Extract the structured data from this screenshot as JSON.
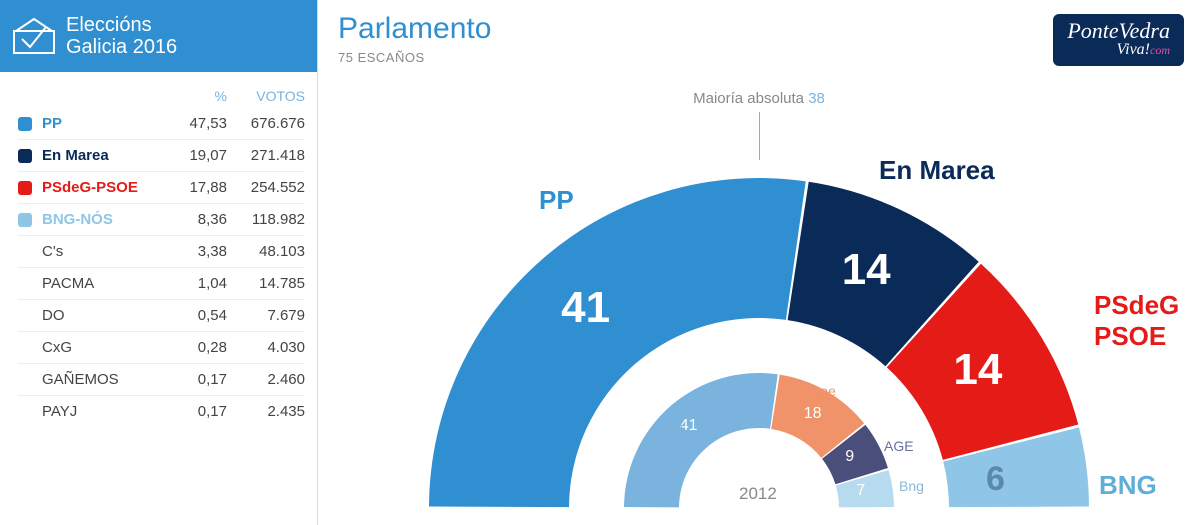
{
  "header": {
    "line1": "Eleccións",
    "line2": "Galicia 2016",
    "bg_color": "#2f8fd0"
  },
  "columns": {
    "pct": "%",
    "votes": "VOTOS"
  },
  "parties": [
    {
      "name": "PP",
      "pct": "47,53",
      "votes": "676.676",
      "color": "#2f8fd0"
    },
    {
      "name": "En Marea",
      "pct": "19,07",
      "votes": "271.418",
      "color": "#0a2a58"
    },
    {
      "name": "PSdeG-PSOE",
      "pct": "17,88",
      "votes": "254.552",
      "color": "#e41b17"
    },
    {
      "name": "BNG-NÓS",
      "pct": "8,36",
      "votes": "118.982",
      "color": "#8fc6e7"
    },
    {
      "name": "C's",
      "pct": "3,38",
      "votes": "48.103",
      "color": null
    },
    {
      "name": "PACMA",
      "pct": "1,04",
      "votes": "14.785",
      "color": null
    },
    {
      "name": "DO",
      "pct": "0,54",
      "votes": "7.679",
      "color": null
    },
    {
      "name": "CxG",
      "pct": "0,28",
      "votes": "4.030",
      "color": null
    },
    {
      "name": "GAÑEMOS",
      "pct": "0,17",
      "votes": "2.460",
      "color": null
    },
    {
      "name": "PAYJ",
      "pct": "0,17",
      "votes": "2.435",
      "color": null
    }
  ],
  "parliament": {
    "title": "Parlamento",
    "subtitle": "75 ESCAÑOS",
    "majority_label": "Maioría absoluta",
    "majority_value": "38",
    "total_seats": 75,
    "outer": [
      {
        "name": "PP",
        "seats": 41,
        "color": "#2f8fd0",
        "label_color": "#2f8fd0"
      },
      {
        "name": "En Marea",
        "seats": 14,
        "color": "#0a2a58",
        "label_color": "#0a2a58"
      },
      {
        "name": "PSdeG PSOE",
        "seats": 14,
        "color": "#e41b17",
        "label_color": "#e41b17"
      },
      {
        "name": "BNG",
        "seats": 6,
        "color": "#8fc6e7",
        "label_color": "#5faed8"
      }
    ],
    "inner_year": "2012",
    "inner": [
      {
        "name": "PP",
        "seats": 41,
        "color": "#7ab3de",
        "label_color": "#7ab3de"
      },
      {
        "name": "Psoe",
        "seats": 18,
        "color": "#f0936a",
        "label_color": "#f0936a"
      },
      {
        "name": "AGE",
        "seats": 9,
        "color": "#4a4e7a",
        "label_color": "#6a6ea0"
      },
      {
        "name": "Bng",
        "seats": 7,
        "color": "#b6dbef",
        "label_color": "#8bb8d4"
      }
    ],
    "outer_radius_out": 330,
    "outer_radius_in": 190,
    "inner_radius_out": 135,
    "inner_radius_in": 80,
    "seat_fontsize": 44,
    "label_fontsize": 26,
    "bng_seat_color_override": "#5b8aa8"
  },
  "logo": {
    "line1": "PonteVedra",
    "line2a": "Viva!",
    "line2b": "com"
  }
}
